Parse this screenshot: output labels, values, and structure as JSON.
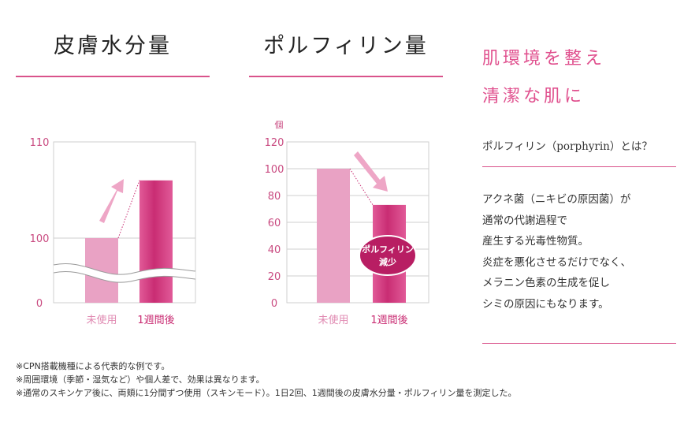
{
  "left_panel": {
    "title": "皮膚水分量"
  },
  "mid_panel": {
    "title": "ポルフィリン量"
  },
  "chart_data": [
    {
      "type": "bar",
      "title": "皮膚水分量",
      "categories": [
        "未使用",
        "1週間後"
      ],
      "values": [
        100,
        106
      ],
      "yticks": [
        0,
        100,
        110
      ],
      "ylim": [
        0,
        110
      ],
      "axis_break": true,
      "grid": true,
      "colors": {
        "before": "#e9a2c4",
        "after": "#c92d73",
        "axis": "#e05a94"
      }
    },
    {
      "type": "bar",
      "title": "ポルフィリン量",
      "ylabel": "個",
      "categories": [
        "未使用",
        "1週間後"
      ],
      "values": [
        100,
        73
      ],
      "yticks": [
        0,
        20,
        40,
        60,
        80,
        100,
        120
      ],
      "ylim": [
        0,
        120
      ],
      "grid": true,
      "badge": [
        "ポルフィリン",
        "減少"
      ],
      "colors": {
        "before": "#e9a2c4",
        "after": "#c92d73",
        "axis": "#e05a94"
      }
    }
  ],
  "side": {
    "heading_lines": [
      "肌環境を整え",
      "清潔な肌に"
    ],
    "question": "ポルフィリン（porphyrin）とは？",
    "body_lines": [
      "アクネ菌（ニキビの原因菌）が",
      "通常の代謝過程で",
      "産生する光毒性物質。",
      "炎症を悪化させるだけでなく、",
      "メラニン色素の生成を促し",
      "シミの原因にもなります。"
    ]
  },
  "notes": [
    "※CPN搭載機種による代表的な例です。",
    "※周囲環境（季節・湿気など）や個人差で、効果は異なります。",
    "※通常のスキンケア後に、両頬に1分間ずつ使用（スキンモード）。1日2回、1週間後の皮膚水分量・ポルフィリン量を測定した。"
  ]
}
